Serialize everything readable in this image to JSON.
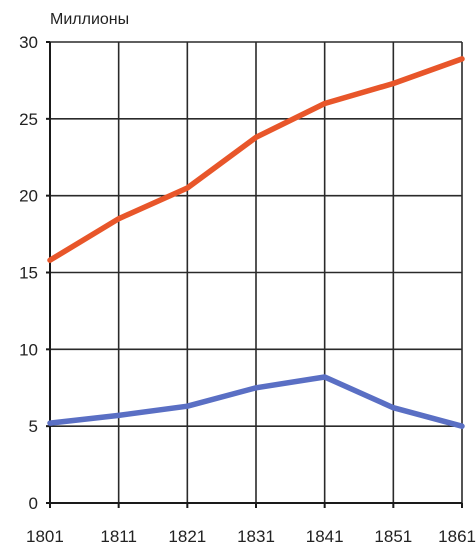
{
  "chart_data": {
    "type": "line",
    "ylabel": "Миллионы",
    "x": [
      1801,
      1811,
      1821,
      1831,
      1841,
      1851,
      1861
    ],
    "xticks": [
      "1801",
      "1811",
      "1821",
      "1831",
      "1841",
      "1851",
      "1861"
    ],
    "yticks": [
      "0",
      "5",
      "10",
      "15",
      "20",
      "25",
      "30"
    ],
    "ylim": [
      0,
      30
    ],
    "xlim": [
      1801,
      1861
    ],
    "grid": true,
    "legend": "none",
    "series": [
      {
        "color": "#e8562a",
        "values": [
          15.8,
          18.5,
          20.5,
          23.8,
          26.0,
          27.3,
          28.9
        ]
      },
      {
        "color": "#5a6fc4",
        "values": [
          5.2,
          5.7,
          6.3,
          7.5,
          8.2,
          6.2,
          5.0
        ]
      }
    ]
  }
}
